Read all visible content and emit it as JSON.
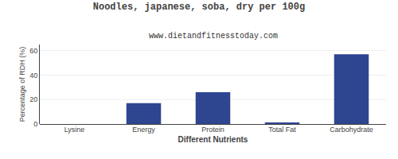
{
  "chart_data": {
    "type": "bar",
    "title": "Noodles, japanese, soba, dry per 100g",
    "subtitle": "www.dietandfitnesstoday.com",
    "xlabel": "Different Nutrients",
    "ylabel": "Percentage of RDH (%)",
    "categories": [
      "Lysine",
      "Energy",
      "Protein",
      "Total Fat",
      "Carbohydrate"
    ],
    "values": [
      0,
      17,
      26,
      1,
      57
    ],
    "color": "#2e4590",
    "ylim": [
      0,
      65
    ],
    "yticks": [
      0,
      20,
      40,
      60
    ],
    "grid": true
  }
}
